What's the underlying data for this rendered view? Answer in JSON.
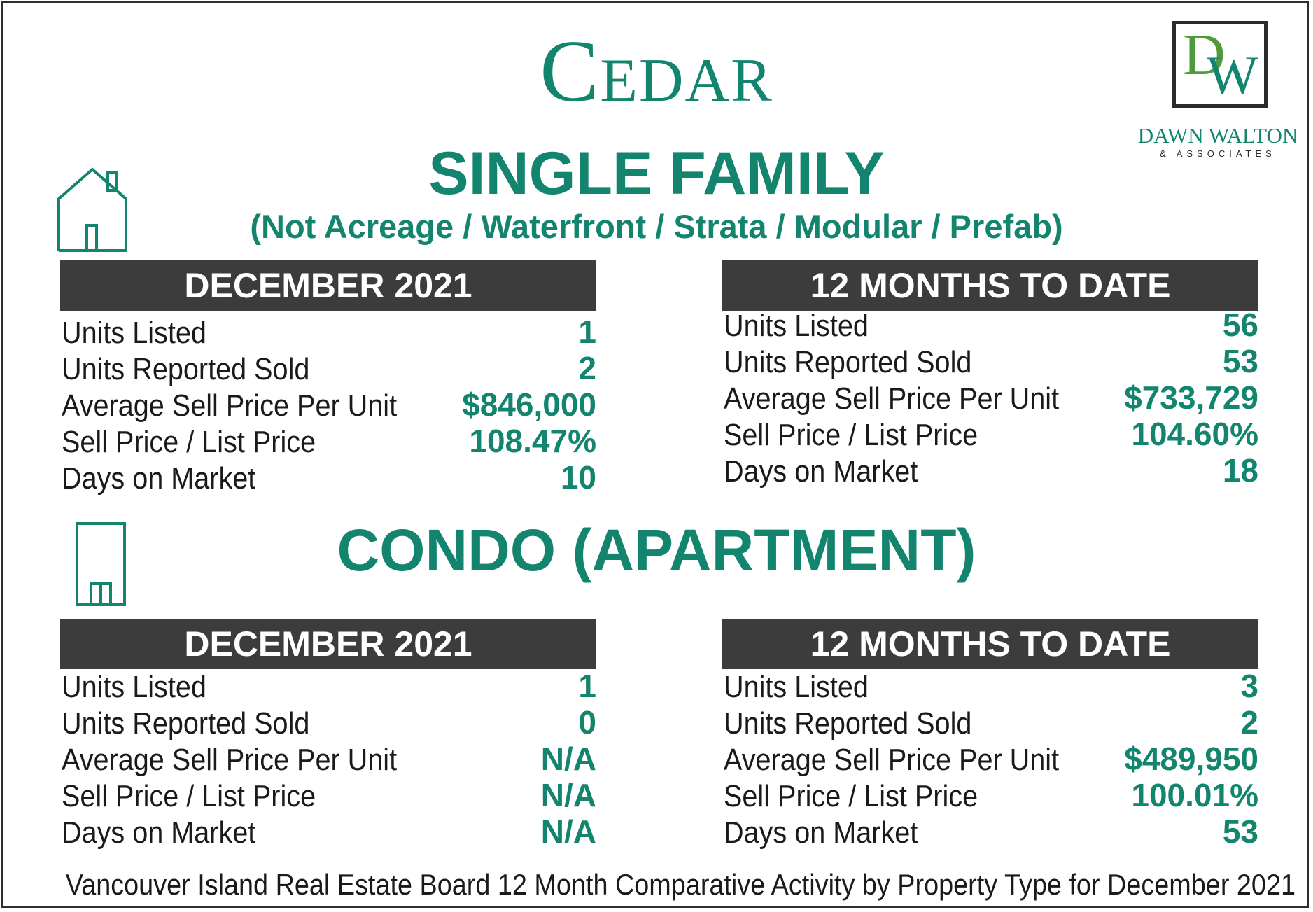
{
  "title": "Cedar",
  "logo": {
    "name": "DAWN WALTON",
    "tagline": "& ASSOCIATES"
  },
  "colors": {
    "accent": "#13856f",
    "header_bg": "#3c3c3c"
  },
  "single_family": {
    "heading": "SINGLE FAMILY",
    "subheading": "(Not Acreage / Waterfront / Strata / Modular / Prefab)",
    "icon": "house-icon",
    "month": {
      "header": "DECEMBER 2021",
      "rows": [
        {
          "label": "Units Listed",
          "value": "1"
        },
        {
          "label": "Units Reported Sold",
          "value": "2"
        },
        {
          "label": "Average Sell Price Per Unit",
          "value": "$846,000"
        },
        {
          "label": "Sell Price / List Price",
          "value": "108.47%"
        },
        {
          "label": "Days on Market",
          "value": "10"
        }
      ]
    },
    "ytd": {
      "header": "12 MONTHS TO DATE",
      "rows": [
        {
          "label": "Units Listed",
          "value": "56"
        },
        {
          "label": "Units Reported Sold",
          "value": "53"
        },
        {
          "label": "Average Sell Price Per Unit",
          "value": "$733,729"
        },
        {
          "label": "Sell Price / List Price",
          "value": "104.60%"
        },
        {
          "label": "Days on Market",
          "value": "18"
        }
      ]
    }
  },
  "condo": {
    "heading": "CONDO (APARTMENT)",
    "icon": "apartment-building-icon",
    "month": {
      "header": "DECEMBER 2021",
      "rows": [
        {
          "label": "Units Listed",
          "value": "1"
        },
        {
          "label": "Units Reported Sold",
          "value": "0"
        },
        {
          "label": "Average Sell Price Per Unit",
          "value": "N/A"
        },
        {
          "label": "Sell Price / List Price",
          "value": "N/A"
        },
        {
          "label": "Days on Market",
          "value": "N/A"
        }
      ]
    },
    "ytd": {
      "header": "12 MONTHS TO DATE",
      "rows": [
        {
          "label": "Units Listed",
          "value": "3"
        },
        {
          "label": "Units Reported Sold",
          "value": "2"
        },
        {
          "label": "Average Sell Price Per Unit",
          "value": "$489,950"
        },
        {
          "label": "Sell Price / List Price",
          "value": "100.01%"
        },
        {
          "label": "Days on Market",
          "value": "53"
        }
      ]
    }
  },
  "footer": "Vancouver Island Real Estate Board 12 Month Comparative Activity by Property Type for December 2021"
}
